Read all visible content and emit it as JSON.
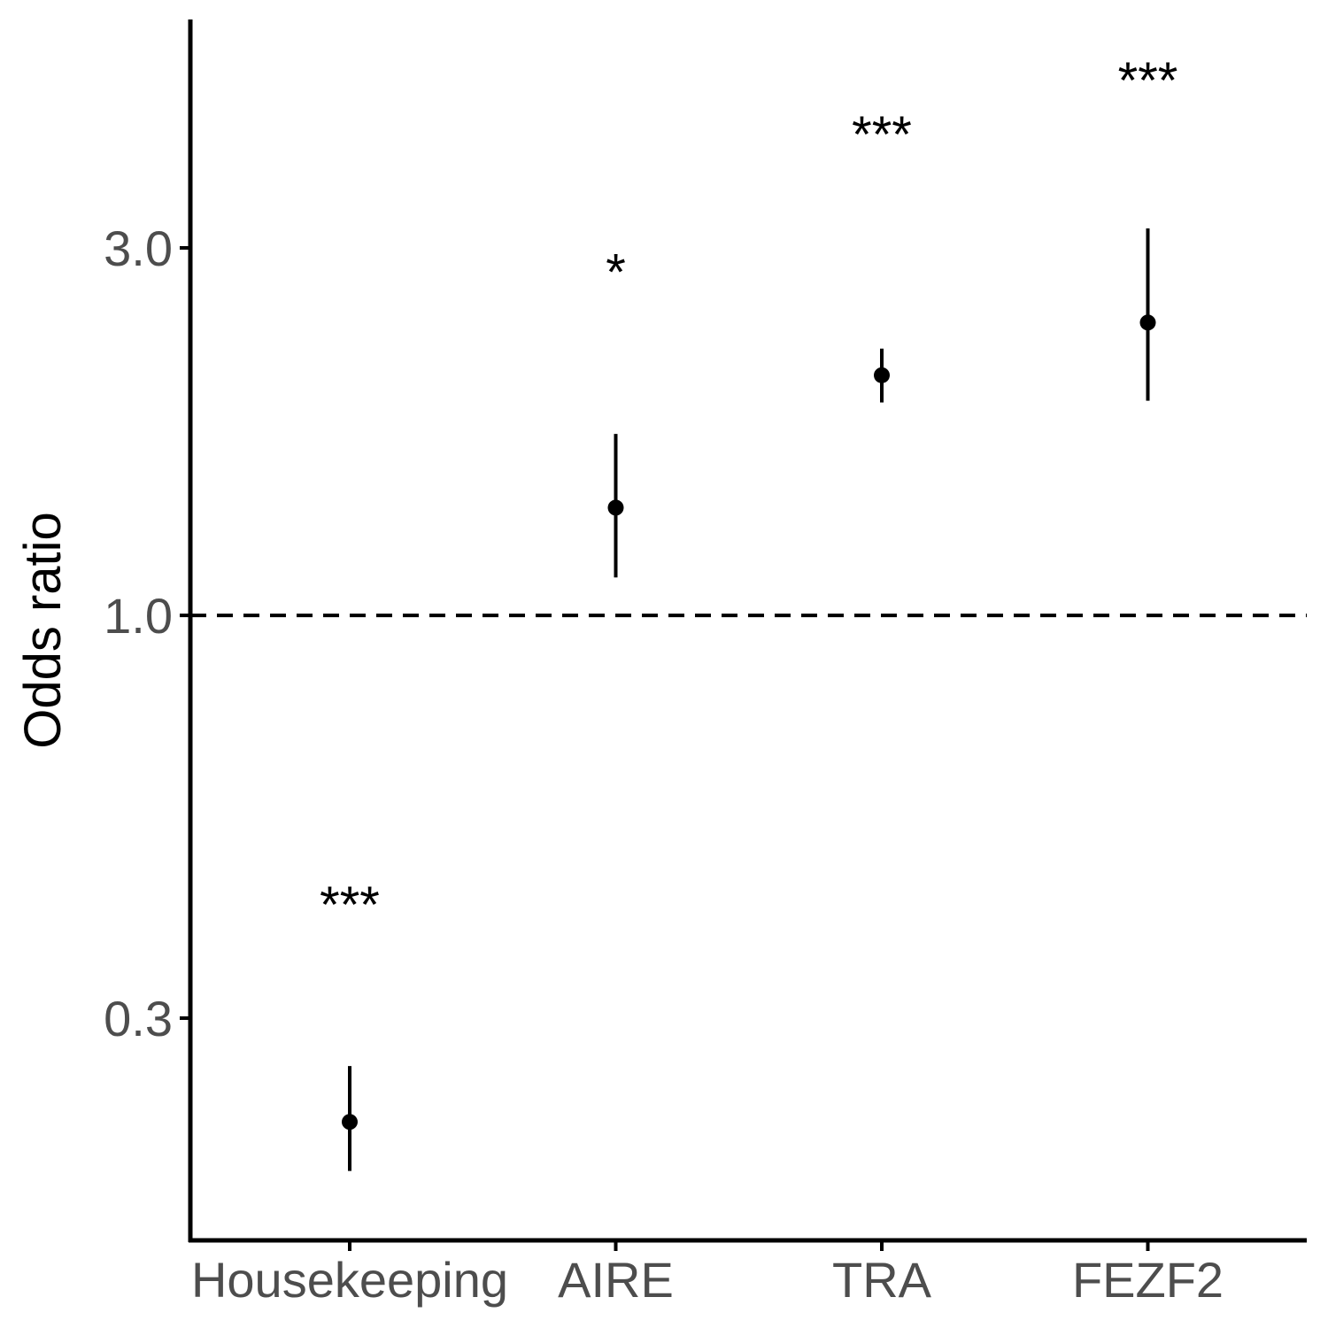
{
  "chart_data": {
    "type": "scatter",
    "subtype": "point-range",
    "title": "",
    "xlabel": "",
    "ylabel": "Odds ratio",
    "y_scale": "log",
    "ylim": [
      0.15,
      5.6
    ],
    "y_ticks": [
      0.3,
      1.0,
      3.0
    ],
    "y_tick_labels": [
      "0.3",
      "1.0",
      "3.0"
    ],
    "reference_line": {
      "y": 1.0,
      "style": "dashed"
    },
    "grid": false,
    "legend": "none",
    "categories": [
      "Housekeeping",
      "AIRE",
      "TRA",
      "FEZF2"
    ],
    "points": [
      {
        "category": "Housekeeping",
        "estimate": 0.22,
        "lower": 0.19,
        "upper": 0.26,
        "label": "***"
      },
      {
        "category": "AIRE",
        "estimate": 1.38,
        "lower": 1.12,
        "upper": 1.72,
        "label": "*"
      },
      {
        "category": "TRA",
        "estimate": 2.05,
        "lower": 1.89,
        "upper": 2.22,
        "label": "***"
      },
      {
        "category": "FEZF2",
        "estimate": 2.4,
        "lower": 1.9,
        "upper": 3.18,
        "label": "***"
      }
    ],
    "label_y_values": [
      0.43,
      2.85,
      4.3,
      5.05
    ],
    "colors": {
      "points": "#000000",
      "axis": "#000000",
      "tick_labels": "#4d4d4d"
    }
  }
}
